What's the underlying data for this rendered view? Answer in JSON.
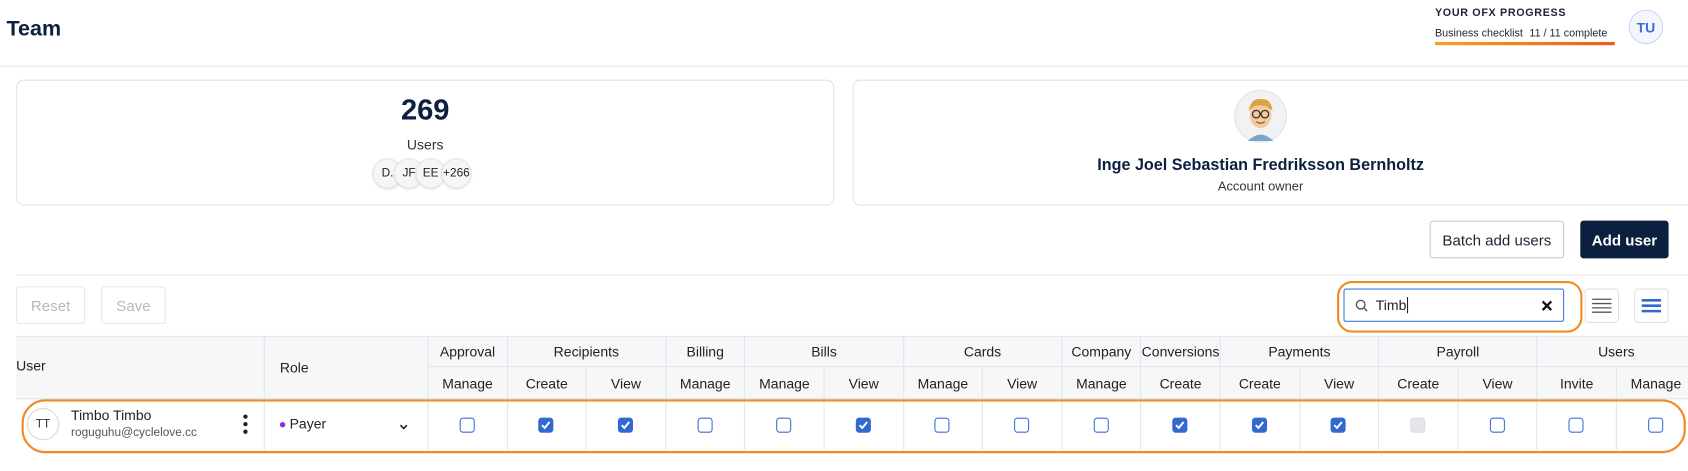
{
  "header": {
    "title": "Team"
  },
  "progress": {
    "label": "YOUR OFX PROGRESS",
    "checklist": "Business checklist",
    "count": "11 / 11 complete"
  },
  "account_avatar": "TU",
  "stats": {
    "count": "269",
    "label": "Users",
    "avatars": [
      "D.",
      "JF",
      "EE",
      "+266"
    ]
  },
  "owner": {
    "name": "Inge Joel Sebastian Fredriksson Bernholtz",
    "role": "Account owner"
  },
  "buttons": {
    "batch_add": "Batch add users",
    "add_user": "Add user",
    "reset": "Reset",
    "save": "Save"
  },
  "search": {
    "value": "Timb"
  },
  "table": {
    "user_header": "User",
    "role_header": "Role",
    "groups": [
      {
        "name": "Approval",
        "actions": [
          "Manage"
        ]
      },
      {
        "name": "Recipients",
        "actions": [
          "Create",
          "View"
        ]
      },
      {
        "name": "Billing",
        "actions": [
          "Manage"
        ]
      },
      {
        "name": "Bills",
        "actions": [
          "Manage",
          "View"
        ]
      },
      {
        "name": "Cards",
        "actions": [
          "Manage",
          "View"
        ]
      },
      {
        "name": "Company",
        "actions": [
          "Manage"
        ]
      },
      {
        "name": "Conversions",
        "actions": [
          "Create"
        ]
      },
      {
        "name": "Payments",
        "actions": [
          "Create",
          "View"
        ]
      },
      {
        "name": "Payroll",
        "actions": [
          "Create",
          "View"
        ]
      },
      {
        "name": "Users",
        "actions": [
          "Invite",
          "Manage"
        ]
      }
    ],
    "rows": [
      {
        "initials": "TT",
        "name": "Timbo Timbo",
        "email": "roguguhu@cyclelove.cc",
        "role": "Payer",
        "permissions": [
          {
            "checked": false
          },
          {
            "checked": true
          },
          {
            "checked": true
          },
          {
            "checked": false
          },
          {
            "checked": false
          },
          {
            "checked": true
          },
          {
            "checked": false
          },
          {
            "checked": false
          },
          {
            "checked": false
          },
          {
            "checked": true
          },
          {
            "checked": true
          },
          {
            "checked": true
          },
          {
            "checked": false,
            "disabled": true
          },
          {
            "checked": false
          },
          {
            "checked": false
          },
          {
            "checked": false
          }
        ]
      }
    ]
  }
}
